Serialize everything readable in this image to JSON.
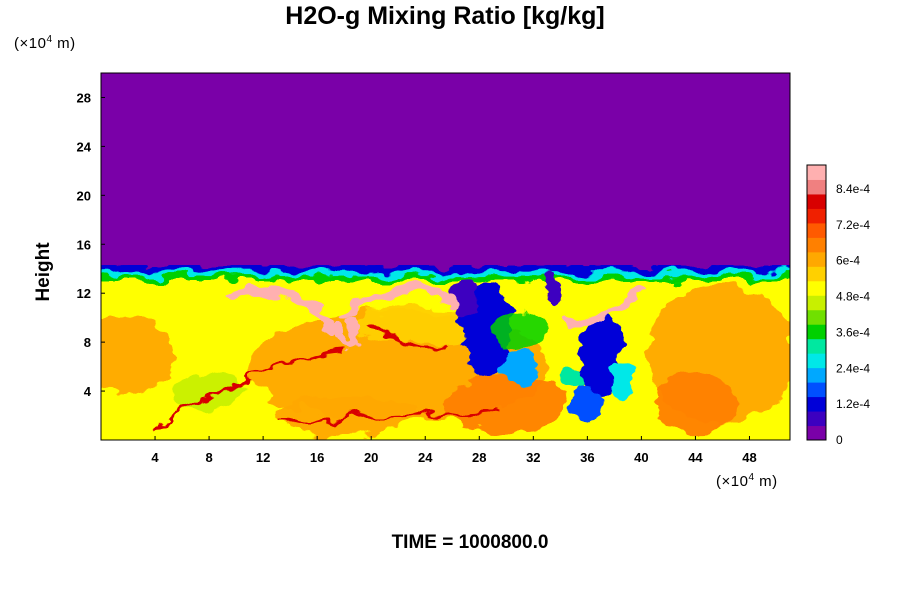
{
  "chart_data": {
    "type": "heatmap",
    "title": "H2O-g Mixing Ratio [kg/kg]",
    "xlabel": "",
    "ylabel": "Height",
    "x_unit": "(×10⁴ m)",
    "y_unit": "(×10⁴ m)",
    "x_ticks": [
      "4",
      "8",
      "12",
      "16",
      "20",
      "24",
      "28",
      "32",
      "36",
      "40",
      "44",
      "48"
    ],
    "y_ticks": [
      "4",
      "8",
      "12",
      "16",
      "20",
      "24",
      "28"
    ],
    "xlim": [
      0,
      51
    ],
    "ylim": [
      0,
      30
    ],
    "colorbar": {
      "min": 0,
      "max": 0.00092,
      "labels": [
        "0",
        "1.2e-4",
        "2.4e-4",
        "3.6e-4",
        "4.8e-4",
        "6e-4",
        "7.2e-4",
        "8.4e-4"
      ],
      "label_values": [
        0,
        0.00012,
        0.00024,
        0.00036,
        0.00048,
        0.0006,
        0.00072,
        0.00084
      ],
      "colors": [
        "#7a00a8",
        "#3c00c0",
        "#0000d8",
        "#0050ff",
        "#00a8ff",
        "#00e8e8",
        "#00e8a0",
        "#00d000",
        "#70e000",
        "#c8f000",
        "#ffff00",
        "#ffd000",
        "#ffa800",
        "#ff8000",
        "#ff5a00",
        "#f02000",
        "#d80000",
        "#f08080",
        "#ffb0b0"
      ]
    },
    "field": {
      "description_value": "moist layer (~6e-4 to 8e-4 kg/kg) from 0 to ~13; dry aloft (0) above ~14; dry intrusions near x=28-40",
      "dry_above_height": 14,
      "moist_layer_top": 13
    }
  },
  "footer": {
    "time_label": "TIME = 1000800.0"
  }
}
